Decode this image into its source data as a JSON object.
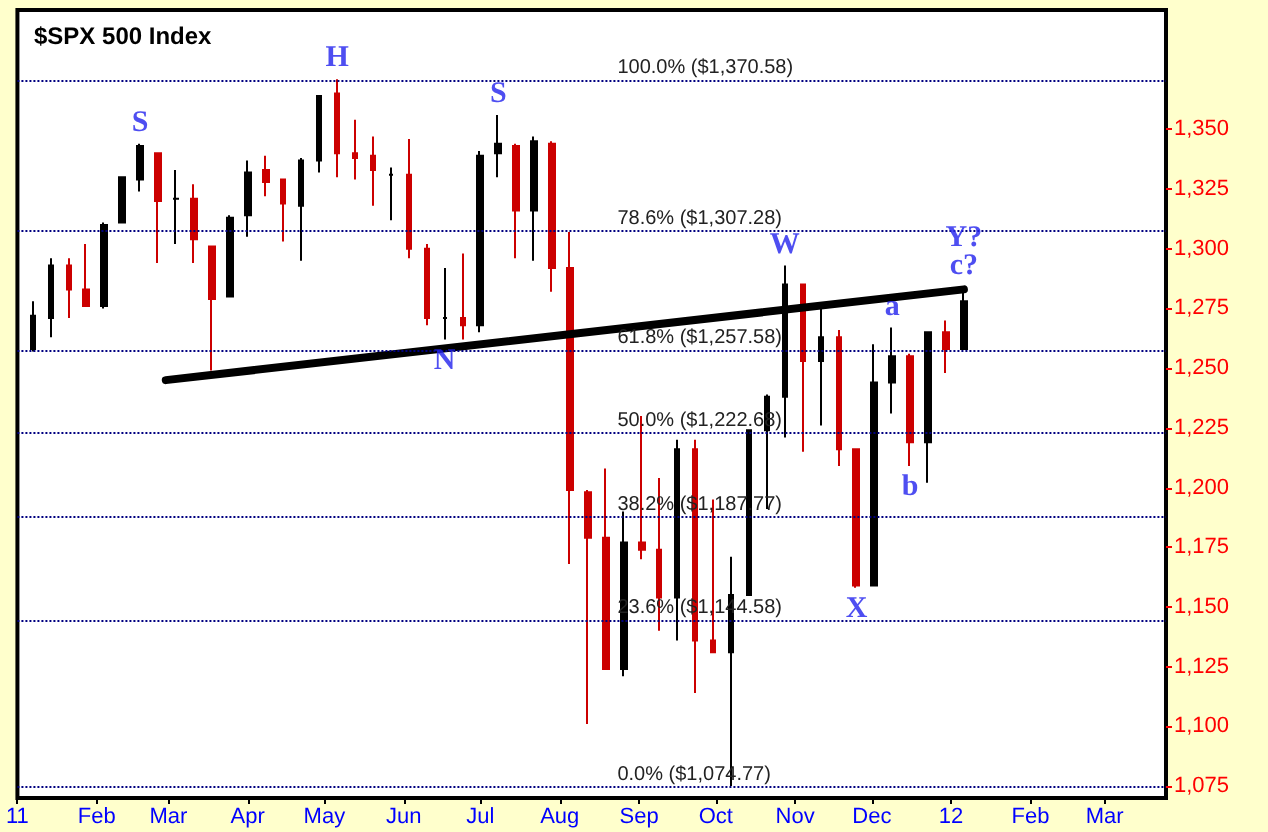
{
  "chart_data": {
    "type": "candlestick",
    "title": "$SPX 500 Index",
    "x": [
      "2011-01-07",
      "2011-01-14",
      "2011-01-21",
      "2011-01-28",
      "2011-02-04",
      "2011-02-11",
      "2011-02-18",
      "2011-02-25",
      "2011-03-04",
      "2011-03-11",
      "2011-03-18",
      "2011-03-25",
      "2011-04-01",
      "2011-04-08",
      "2011-04-15",
      "2011-04-22",
      "2011-04-29",
      "2011-05-06",
      "2011-05-13",
      "2011-05-20",
      "2011-05-27",
      "2011-06-03",
      "2011-06-10",
      "2011-06-17",
      "2011-06-24",
      "2011-07-01",
      "2011-07-08",
      "2011-07-15",
      "2011-07-22",
      "2011-07-29",
      "2011-08-05",
      "2011-08-12",
      "2011-08-19",
      "2011-08-26",
      "2011-09-02",
      "2011-09-09",
      "2011-09-16",
      "2011-09-23",
      "2011-09-30",
      "2011-10-07",
      "2011-10-14",
      "2011-10-21",
      "2011-10-28",
      "2011-11-04",
      "2011-11-11",
      "2011-11-18",
      "2011-11-25",
      "2011-12-02",
      "2011-12-09",
      "2011-12-16",
      "2011-12-23",
      "2011-12-30",
      "2012-01-06"
    ],
    "ohlc": [
      [
        1258,
        1278,
        1257,
        1272
      ],
      [
        1271,
        1296,
        1263,
        1293
      ],
      [
        1293,
        1296,
        1271,
        1283
      ],
      [
        1283,
        1302,
        1276,
        1276
      ],
      [
        1276,
        1311,
        1275,
        1310
      ],
      [
        1311,
        1330,
        1311,
        1330
      ],
      [
        1329,
        1344,
        1324,
        1343
      ],
      [
        1340,
        1340,
        1294,
        1320
      ],
      [
        1321,
        1333,
        1302,
        1321
      ],
      [
        1321,
        1327,
        1294,
        1304
      ],
      [
        1301,
        1301,
        1249,
        1279
      ],
      [
        1280,
        1314,
        1280,
        1313
      ],
      [
        1314,
        1337,
        1305,
        1332
      ],
      [
        1333,
        1339,
        1322,
        1328
      ],
      [
        1329,
        1329,
        1303,
        1319
      ],
      [
        1318,
        1338,
        1295,
        1337
      ],
      [
        1337,
        1364,
        1332,
        1364
      ],
      [
        1365,
        1371,
        1330,
        1340
      ],
      [
        1340,
        1354,
        1329,
        1338
      ],
      [
        1339,
        1347,
        1318,
        1333
      ],
      [
        1331,
        1334,
        1312,
        1331
      ],
      [
        1331,
        1346,
        1296,
        1300
      ],
      [
        1300,
        1302,
        1268,
        1271
      ],
      [
        1271,
        1292,
        1262,
        1271
      ],
      [
        1271,
        1298,
        1262,
        1268
      ],
      [
        1268,
        1341,
        1265,
        1339
      ],
      [
        1340,
        1356,
        1330,
        1344
      ],
      [
        1343,
        1344,
        1296,
        1316
      ],
      [
        1316,
        1347,
        1295,
        1345
      ],
      [
        1344,
        1345,
        1282,
        1292
      ],
      [
        1292,
        1307,
        1168,
        1199
      ],
      [
        1198,
        1199,
        1101,
        1179
      ],
      [
        1179,
        1208,
        1124,
        1124
      ],
      [
        1124,
        1190,
        1121,
        1177
      ],
      [
        1177,
        1230,
        1170,
        1174
      ],
      [
        1174,
        1204,
        1140,
        1154
      ],
      [
        1154,
        1220,
        1136,
        1216
      ],
      [
        1216,
        1220,
        1114,
        1136
      ],
      [
        1136,
        1195,
        1131,
        1131
      ],
      [
        1131,
        1171,
        1075,
        1155
      ],
      [
        1155,
        1224,
        1155,
        1224
      ],
      [
        1224,
        1239,
        1191,
        1238
      ],
      [
        1238,
        1293,
        1221,
        1285
      ],
      [
        1285,
        1285,
        1215,
        1253
      ],
      [
        1253,
        1277,
        1226,
        1263
      ],
      [
        1263,
        1266,
        1209,
        1216
      ],
      [
        1216,
        1216,
        1158,
        1159
      ],
      [
        1159,
        1260,
        1159,
        1244
      ],
      [
        1244,
        1267,
        1231,
        1255
      ],
      [
        1255,
        1256,
        1209,
        1219
      ],
      [
        1219,
        1265,
        1202,
        1265
      ],
      [
        1265,
        1270,
        1248,
        1258
      ],
      [
        1258,
        1284,
        1258,
        1278
      ]
    ],
    "colors": [
      "#000000",
      "#000000",
      "#cc0000",
      "#cc0000",
      "#000000",
      "#000000",
      "#000000",
      "#cc0000",
      "#000000",
      "#cc0000",
      "#cc0000",
      "#000000",
      "#000000",
      "#cc0000",
      "#cc0000",
      "#000000",
      "#000000",
      "#cc0000",
      "#cc0000",
      "#cc0000",
      "#000000",
      "#cc0000",
      "#cc0000",
      "#000000",
      "#cc0000",
      "#000000",
      "#000000",
      "#cc0000",
      "#000000",
      "#cc0000",
      "#cc0000",
      "#cc0000",
      "#cc0000",
      "#000000",
      "#cc0000",
      "#cc0000",
      "#000000",
      "#cc0000",
      "#cc0000",
      "#000000",
      "#000000",
      "#000000",
      "#000000",
      "#cc0000",
      "#000000",
      "#cc0000",
      "#cc0000",
      "#000000",
      "#000000",
      "#cc0000",
      "#000000",
      "#cc0000",
      "#000000"
    ],
    "series": [
      {
        "type": "line",
        "color": "#000000",
        "x": [
          "2011-02-28",
          "2012-01-06"
        ],
        "values": [
          1245,
          1283
        ]
      }
    ],
    "xlim": [
      "2011-01-01",
      "2012-03-25"
    ],
    "xticks": [
      {
        "value": "2011-01-01",
        "label": "11"
      },
      {
        "value": "2011-02-01",
        "label": "Feb"
      },
      {
        "value": "2011-03-01",
        "label": "Mar"
      },
      {
        "value": "2011-04-01",
        "label": "Apr"
      },
      {
        "value": "2011-05-01",
        "label": "May"
      },
      {
        "value": "2011-06-01",
        "label": "Jun"
      },
      {
        "value": "2011-07-01",
        "label": "Jul"
      },
      {
        "value": "2011-08-01",
        "label": "Aug"
      },
      {
        "value": "2011-09-01",
        "label": "Sep"
      },
      {
        "value": "2011-10-01",
        "label": "Oct"
      },
      {
        "value": "2011-11-01",
        "label": "Nov"
      },
      {
        "value": "2011-12-01",
        "label": "Dec"
      },
      {
        "value": "2012-01-01",
        "label": "12"
      },
      {
        "value": "2012-02-01",
        "label": "Feb"
      },
      {
        "value": "2012-03-01",
        "label": "Mar"
      }
    ],
    "ylim": [
      1070,
      1400
    ],
    "yticks": [
      {
        "value": 1075,
        "label": "1,075"
      },
      {
        "value": 1100,
        "label": "1,100"
      },
      {
        "value": 1125,
        "label": "1,125"
      },
      {
        "value": 1150,
        "label": "1,150"
      },
      {
        "value": 1175,
        "label": "1,175"
      },
      {
        "value": 1200,
        "label": "1,200"
      },
      {
        "value": 1225,
        "label": "1,225"
      },
      {
        "value": 1250,
        "label": "1,250"
      },
      {
        "value": 1275,
        "label": "1,275"
      },
      {
        "value": 1300,
        "label": "1,300"
      },
      {
        "value": 1325,
        "label": "1,325"
      },
      {
        "value": 1350,
        "label": "1,350"
      }
    ],
    "ref_lines": [
      {
        "axis": "y",
        "value": 1370.58,
        "label": "100.0% ($1,370.58)",
        "color": "#000080",
        "line_style": "dotted"
      },
      {
        "axis": "y",
        "value": 1307.28,
        "label": "78.6% ($1,307.28)",
        "color": "#000080",
        "line_style": "dotted"
      },
      {
        "axis": "y",
        "value": 1257.58,
        "label": "61.8% ($1,257.58)",
        "color": "#000080",
        "line_style": "dotted"
      },
      {
        "axis": "y",
        "value": 1222.68,
        "label": "50.0% ($1,222.68)",
        "color": "#000080",
        "line_style": "dotted"
      },
      {
        "axis": "y",
        "value": 1187.77,
        "label": "38.2% ($1,187.77)",
        "color": "#000080",
        "line_style": "dotted"
      },
      {
        "axis": "y",
        "value": 1144.58,
        "label": "23.6% ($1,144.58)",
        "color": "#000080",
        "line_style": "dotted"
      },
      {
        "axis": "y",
        "value": 1074.77,
        "label": "0.0% ($1,074.77)",
        "color": "#000080",
        "line_style": "dotted"
      }
    ],
    "annotations": [
      {
        "text": "S",
        "x": "2011-02-18",
        "y": 1344
      },
      {
        "text": "H",
        "x": "2011-05-06",
        "y": 1371
      },
      {
        "text": "S",
        "x": "2011-07-08",
        "y": 1356
      },
      {
        "text": "N",
        "x": "2011-06-17",
        "y": 1262
      },
      {
        "text": "W",
        "x": "2011-10-28",
        "y": 1293
      },
      {
        "text": "X",
        "x": "2011-11-25",
        "y": 1158
      },
      {
        "text": "a",
        "x": "2011-12-09",
        "y": 1267
      },
      {
        "text": "b",
        "x": "2011-12-16",
        "y": 1209
      },
      {
        "text": "Y?",
        "x": "2012-01-06",
        "y": 1284
      },
      {
        "text": "c?",
        "x": "2012-01-06",
        "y": 1284
      }
    ]
  }
}
